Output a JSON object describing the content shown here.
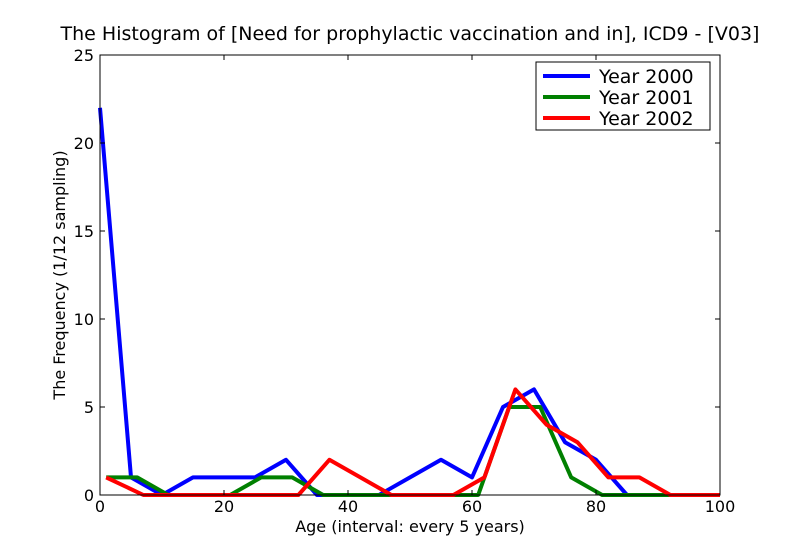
{
  "chart_data": {
    "type": "line",
    "title": "The Histogram of [Need for prophylactic vaccination and in], ICD9 - [V03]",
    "xlabel": "Age (interval: every 5 years)",
    "ylabel": "The Frequency (1/12 sampling)",
    "xlim": [
      0,
      100
    ],
    "ylim": [
      0,
      25
    ],
    "xticks": [
      0,
      20,
      40,
      60,
      80,
      100
    ],
    "yticks": [
      0,
      5,
      10,
      15,
      20,
      25
    ],
    "legend_position": "top-right",
    "grid": false,
    "series": [
      {
        "name": "Year 2000",
        "color": "#0000ff",
        "x": [
          0,
          5,
          10,
          15,
          20,
          25,
          30,
          35,
          40,
          45,
          50,
          55,
          60,
          65,
          70,
          75,
          80,
          85,
          90,
          95,
          100
        ],
        "y": [
          22,
          1,
          0,
          1,
          1,
          1,
          2,
          0,
          0,
          0,
          1,
          2,
          1,
          5,
          6,
          3,
          2,
          0,
          0,
          0,
          0
        ]
      },
      {
        "name": "Year 2001",
        "color": "#008000",
        "x": [
          1,
          6,
          11,
          16,
          21,
          26,
          31,
          36,
          41,
          46,
          51,
          56,
          61,
          66,
          71,
          76,
          81,
          86,
          91,
          96,
          100
        ],
        "y": [
          1,
          1,
          0,
          0,
          0,
          1,
          1,
          0,
          0,
          0,
          0,
          0,
          0,
          5,
          5,
          1,
          0,
          0,
          0,
          0,
          0
        ]
      },
      {
        "name": "Year 2002",
        "color": "#ff0000",
        "x": [
          1,
          7,
          12,
          17,
          22,
          27,
          32,
          37,
          42,
          47,
          52,
          57,
          62,
          67,
          72,
          77,
          82,
          87,
          92,
          97,
          100
        ],
        "y": [
          1,
          0,
          0,
          0,
          0,
          0,
          0,
          2,
          1,
          0,
          0,
          0,
          1,
          6,
          4,
          3,
          1,
          1,
          0,
          0,
          0
        ]
      }
    ]
  }
}
